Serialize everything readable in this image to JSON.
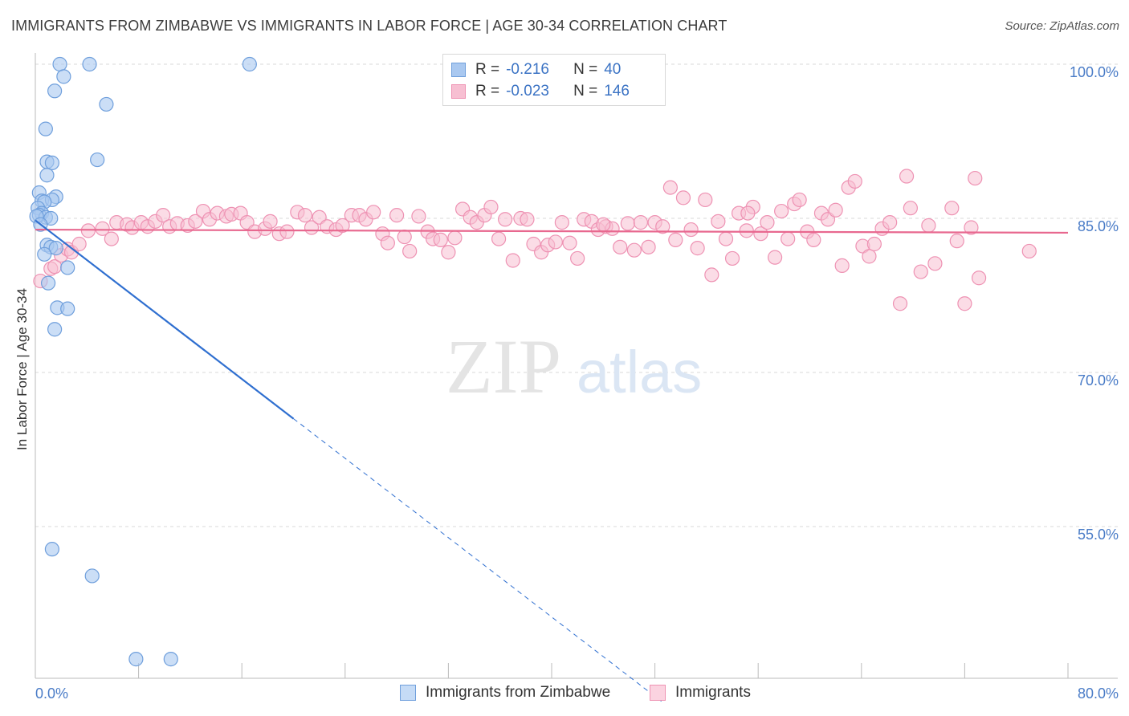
{
  "title": "IMMIGRANTS FROM ZIMBABWE VS IMMIGRANTS IN LABOR FORCE | AGE 30-34 CORRELATION CHART",
  "source": "Source: ZipAtlas.com",
  "legend": {
    "series1": {
      "r_label": "R =",
      "r_value": "-0.216",
      "n_label": "N =",
      "n_value": "40"
    },
    "series2": {
      "r_label": "R =",
      "r_value": "-0.023",
      "n_label": "N =",
      "n_value": "146"
    }
  },
  "bottom_legend": {
    "series1": "Immigrants from Zimbabwe",
    "series2": "Immigrants"
  },
  "watermark": {
    "zip": "ZIP",
    "atlas": "atlas"
  },
  "colors": {
    "blue_fill": "#a9c8f0",
    "blue_stroke": "#6f9fdc",
    "blue_line": "#2f6fd0",
    "pink_fill": "#f7bfd2",
    "pink_stroke": "#ee92b3",
    "pink_line": "#e8688f",
    "grid": "#d9d9d9",
    "tick_text": "#4a7cc7"
  },
  "chart_data": {
    "type": "scatter",
    "title": "IMMIGRANTS FROM ZIMBABWE VS IMMIGRANTS IN LABOR FORCE | AGE 30-34 CORRELATION CHART",
    "xlabel": "",
    "ylabel": "In Labor Force | Age 30-34",
    "xlim": [
      0,
      80
    ],
    "ylim": [
      42,
      101.5
    ],
    "x_tick_labels": [
      "0.0%",
      "80.0%"
    ],
    "y_ticks": [
      55,
      70,
      85,
      100
    ],
    "y_tick_labels": [
      "55.0%",
      "70.0%",
      "85.0%",
      "100.0%"
    ],
    "series": [
      {
        "name": "Immigrants from Zimbabwe",
        "r": -0.216,
        "n": 40,
        "trend": {
          "x0": 0,
          "y0": 84.8,
          "x1": 20.0,
          "y1": 65.5,
          "dash_to_x": 48.5
        },
        "points": [
          [
            1.9,
            100.0
          ],
          [
            4.2,
            100.0
          ],
          [
            16.6,
            100.0
          ],
          [
            2.2,
            98.8
          ],
          [
            1.5,
            97.4
          ],
          [
            5.5,
            96.1
          ],
          [
            0.8,
            93.7
          ],
          [
            4.8,
            90.7
          ],
          [
            0.9,
            90.5
          ],
          [
            1.3,
            90.4
          ],
          [
            0.9,
            89.2
          ],
          [
            0.3,
            87.5
          ],
          [
            1.6,
            87.1
          ],
          [
            0.5,
            86.7
          ],
          [
            1.3,
            86.8
          ],
          [
            0.7,
            86.6
          ],
          [
            0.2,
            86.0
          ],
          [
            0.5,
            85.5
          ],
          [
            0.3,
            85.3
          ],
          [
            0.8,
            85.1
          ],
          [
            1.2,
            85.0
          ],
          [
            0.1,
            85.2
          ],
          [
            0.4,
            84.4
          ],
          [
            0.9,
            82.4
          ],
          [
            1.2,
            82.2
          ],
          [
            1.6,
            82.1
          ],
          [
            0.7,
            81.5
          ],
          [
            2.5,
            80.2
          ],
          [
            1.0,
            78.7
          ],
          [
            1.7,
            76.3
          ],
          [
            2.5,
            76.2
          ],
          [
            1.5,
            74.2
          ],
          [
            1.3,
            52.8
          ],
          [
            4.4,
            50.2
          ],
          [
            7.8,
            42.1
          ],
          [
            10.5,
            42.1
          ]
        ]
      },
      {
        "name": "Immigrants",
        "r": -0.023,
        "n": 146,
        "trend": {
          "x0": 0,
          "y0": 83.9,
          "x1": 80,
          "y1": 83.6
        },
        "points": [
          [
            0.4,
            78.9
          ],
          [
            1.2,
            80.1
          ],
          [
            1.5,
            80.3
          ],
          [
            2.0,
            81.4
          ],
          [
            2.5,
            82.0
          ],
          [
            2.8,
            81.7
          ],
          [
            3.4,
            82.5
          ],
          [
            4.1,
            83.8
          ],
          [
            5.2,
            84.0
          ],
          [
            5.9,
            83.0
          ],
          [
            6.3,
            84.6
          ],
          [
            7.1,
            84.4
          ],
          [
            7.5,
            84.1
          ],
          [
            8.2,
            84.6
          ],
          [
            8.7,
            84.2
          ],
          [
            9.3,
            84.7
          ],
          [
            9.9,
            85.3
          ],
          [
            10.4,
            84.2
          ],
          [
            11.0,
            84.5
          ],
          [
            11.8,
            84.3
          ],
          [
            12.4,
            84.7
          ],
          [
            13.0,
            85.7
          ],
          [
            13.5,
            84.9
          ],
          [
            14.1,
            85.5
          ],
          [
            14.8,
            85.2
          ],
          [
            15.2,
            85.4
          ],
          [
            15.9,
            85.5
          ],
          [
            16.4,
            84.6
          ],
          [
            17.0,
            83.7
          ],
          [
            17.8,
            84.0
          ],
          [
            18.2,
            84.7
          ],
          [
            18.9,
            83.5
          ],
          [
            19.5,
            83.7
          ],
          [
            20.3,
            85.6
          ],
          [
            20.9,
            85.3
          ],
          [
            21.4,
            84.1
          ],
          [
            22.0,
            85.1
          ],
          [
            22.6,
            84.2
          ],
          [
            23.3,
            83.9
          ],
          [
            23.8,
            84.3
          ],
          [
            24.5,
            85.3
          ],
          [
            25.1,
            85.3
          ],
          [
            25.6,
            84.9
          ],
          [
            26.2,
            85.6
          ],
          [
            26.9,
            83.5
          ],
          [
            27.3,
            82.6
          ],
          [
            28.0,
            85.3
          ],
          [
            28.6,
            83.2
          ],
          [
            29.0,
            81.8
          ],
          [
            29.7,
            85.2
          ],
          [
            30.4,
            83.7
          ],
          [
            30.8,
            83.0
          ],
          [
            31.4,
            82.9
          ],
          [
            32.0,
            81.7
          ],
          [
            32.5,
            83.1
          ],
          [
            33.1,
            85.9
          ],
          [
            33.7,
            85.1
          ],
          [
            34.2,
            84.6
          ],
          [
            34.8,
            85.3
          ],
          [
            35.3,
            86.1
          ],
          [
            35.9,
            83.0
          ],
          [
            36.4,
            84.9
          ],
          [
            37.0,
            80.9
          ],
          [
            37.6,
            85.0
          ],
          [
            38.1,
            84.9
          ],
          [
            38.6,
            82.5
          ],
          [
            39.2,
            81.7
          ],
          [
            39.7,
            82.4
          ],
          [
            40.3,
            82.7
          ],
          [
            40.8,
            84.6
          ],
          [
            41.4,
            82.6
          ],
          [
            42.0,
            81.1
          ],
          [
            42.5,
            84.9
          ],
          [
            43.1,
            84.7
          ],
          [
            43.6,
            83.9
          ],
          [
            44.2,
            84.2
          ],
          [
            44.7,
            84.0
          ],
          [
            45.3,
            82.2
          ],
          [
            45.9,
            84.5
          ],
          [
            46.4,
            81.9
          ],
          [
            46.9,
            84.6
          ],
          [
            47.5,
            82.2
          ],
          [
            48.0,
            84.6
          ],
          [
            48.6,
            84.2
          ],
          [
            49.2,
            88.0
          ],
          [
            49.6,
            82.9
          ],
          [
            50.2,
            87.0
          ],
          [
            50.8,
            83.9
          ],
          [
            51.3,
            82.1
          ],
          [
            51.9,
            86.8
          ],
          [
            52.4,
            79.5
          ],
          [
            52.9,
            84.7
          ],
          [
            53.5,
            83.0
          ],
          [
            54.0,
            81.1
          ],
          [
            54.5,
            85.5
          ],
          [
            55.1,
            83.8
          ],
          [
            55.6,
            86.1
          ],
          [
            56.2,
            83.5
          ],
          [
            56.7,
            84.6
          ],
          [
            57.3,
            81.2
          ],
          [
            57.8,
            85.7
          ],
          [
            58.3,
            83.0
          ],
          [
            58.8,
            86.4
          ],
          [
            59.2,
            86.8
          ],
          [
            59.8,
            83.7
          ],
          [
            60.3,
            82.9
          ],
          [
            60.9,
            85.5
          ],
          [
            61.4,
            84.9
          ],
          [
            62.0,
            85.8
          ],
          [
            62.5,
            80.4
          ],
          [
            63.0,
            88.0
          ],
          [
            63.5,
            88.6
          ],
          [
            64.1,
            82.3
          ],
          [
            64.6,
            81.3
          ],
          [
            65.0,
            82.5
          ],
          [
            65.6,
            84.0
          ],
          [
            66.2,
            84.6
          ],
          [
            67.0,
            76.7
          ],
          [
            67.5,
            89.1
          ],
          [
            67.8,
            86.0
          ],
          [
            68.6,
            79.8
          ],
          [
            69.2,
            84.3
          ],
          [
            69.7,
            80.6
          ],
          [
            71.0,
            86.0
          ],
          [
            71.4,
            82.8
          ],
          [
            72.0,
            76.7
          ],
          [
            72.5,
            84.1
          ],
          [
            72.8,
            88.9
          ],
          [
            73.1,
            79.2
          ],
          [
            77.0,
            81.8
          ],
          [
            55.2,
            85.5
          ],
          [
            44.0,
            84.4
          ]
        ]
      }
    ]
  }
}
